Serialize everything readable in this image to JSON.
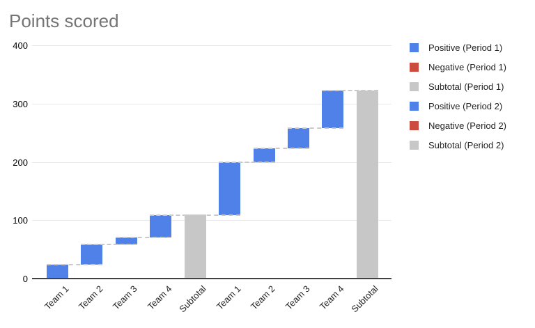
{
  "title": "Points scored",
  "colors": {
    "positive": "#4f81e8",
    "negative": "#cb4b3e",
    "subtotal": "#c7c7c7",
    "gridline": "#e8e8e8",
    "axis_line": "#424242",
    "connector": "#c9c9c9",
    "title_text": "#757575",
    "tick_text": "#000000",
    "label_text": "#222222"
  },
  "legend": [
    {
      "label": "Positive (Period 1)",
      "type": "positive"
    },
    {
      "label": "Negative (Period 1)",
      "type": "negative"
    },
    {
      "label": "Subtotal (Period 1)",
      "type": "subtotal"
    },
    {
      "label": "Positive (Period 2)",
      "type": "positive"
    },
    {
      "label": "Negative (Period 2)",
      "type": "negative"
    },
    {
      "label": "Subtotal (Period 2)",
      "type": "subtotal"
    }
  ],
  "chart_data": {
    "type": "bar",
    "subtype": "waterfall",
    "title": "Points scored",
    "xlabel": "",
    "ylabel": "",
    "ylim": [
      0,
      400
    ],
    "yticks": [
      0,
      100,
      200,
      300,
      400
    ],
    "grid": true,
    "legend_position": "right",
    "categories": [
      "Team 1",
      "Team 2",
      "Team 3",
      "Team 4",
      "Subtotal",
      "Team 1",
      "Team 2",
      "Team 3",
      "Team 4",
      "Subtotal"
    ],
    "bars": [
      {
        "label": "Team 1",
        "period": 1,
        "kind": "positive",
        "value": 24
      },
      {
        "label": "Team 2",
        "period": 1,
        "kind": "positive",
        "value": 35
      },
      {
        "label": "Team 3",
        "period": 1,
        "kind": "positive",
        "value": 12
      },
      {
        "label": "Team 4",
        "period": 1,
        "kind": "positive",
        "value": 38
      },
      {
        "label": "Subtotal",
        "period": 1,
        "kind": "subtotal",
        "value": 109
      },
      {
        "label": "Team 1",
        "period": 2,
        "kind": "positive",
        "value": 90
      },
      {
        "label": "Team 2",
        "period": 2,
        "kind": "positive",
        "value": 24
      },
      {
        "label": "Team 3",
        "period": 2,
        "kind": "positive",
        "value": 35
      },
      {
        "label": "Team 4",
        "period": 2,
        "kind": "positive",
        "value": 64
      },
      {
        "label": "Subtotal",
        "period": 2,
        "kind": "subtotal",
        "value": 322
      }
    ],
    "cumulative_levels": [
      24,
      59,
      71,
      109,
      109,
      199,
      223,
      258,
      322,
      322
    ]
  }
}
